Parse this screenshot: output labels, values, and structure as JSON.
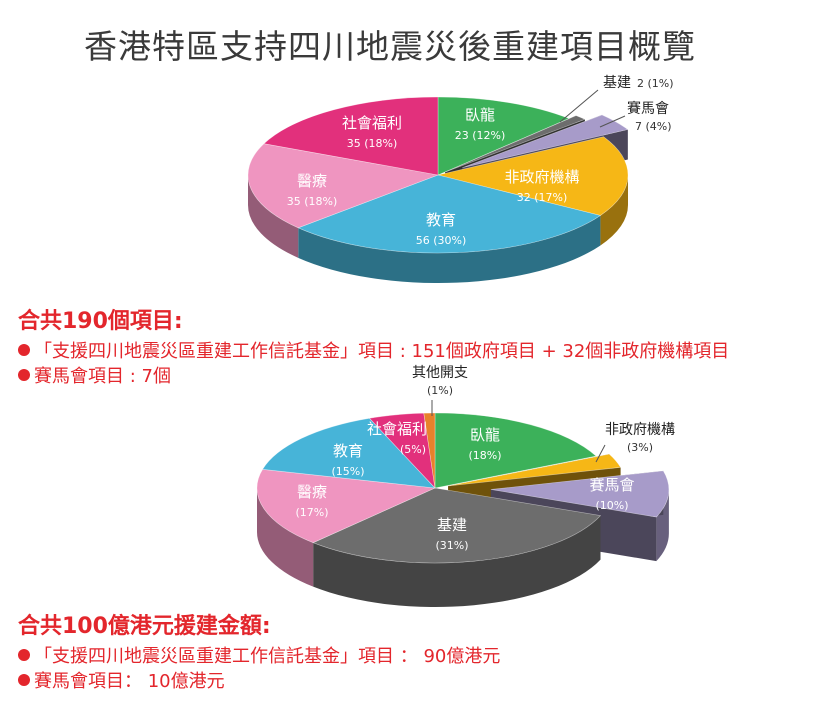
{
  "title": "香港特區支持四川地震災後重建項目概覽",
  "chart_data": [
    {
      "type": "pie",
      "slices": [
        {
          "label": "臥龍",
          "value": 23,
          "percent": "12%",
          "color": "#3cb15a",
          "value_text": "23 (12%)"
        },
        {
          "label": "基建",
          "value": 2,
          "percent": "1%",
          "color": "#6d6d6d",
          "value_text": "2 (1%)"
        },
        {
          "label": "賽馬會",
          "value": 7,
          "percent": "4%",
          "color": "#a79bc9",
          "value_text": "7 (4%)"
        },
        {
          "label": "非政府機構",
          "value": 32,
          "percent": "17%",
          "color": "#f6b716",
          "value_text": "32 (17%)"
        },
        {
          "label": "教育",
          "value": 56,
          "percent": "30%",
          "color": "#47b4d8",
          "value_text": "56 (30%)"
        },
        {
          "label": "醫療",
          "value": 35,
          "percent": "18%",
          "color": "#ef95c0",
          "value_text": "35 (18%)"
        },
        {
          "label": "社會福利",
          "value": 35,
          "percent": "18%",
          "color": "#e2307c",
          "value_text": "35 (18%)"
        }
      ]
    },
    {
      "type": "pie",
      "slices": [
        {
          "label": "臥龍",
          "percent": 18,
          "color": "#3cb15a",
          "value_text": "(18%)"
        },
        {
          "label": "非政府機構",
          "percent": 3,
          "color": "#f6b716",
          "value_text": "(3%)"
        },
        {
          "label": "賽馬會",
          "percent": 10,
          "color": "#a79bc9",
          "value_text": "(10%)"
        },
        {
          "label": "基建",
          "percent": 31,
          "color": "#6d6d6d",
          "value_text": "(31%)"
        },
        {
          "label": "醫療",
          "percent": 17,
          "color": "#ef95c0",
          "value_text": "(17%)"
        },
        {
          "label": "教育",
          "percent": 15,
          "color": "#47b4d8",
          "value_text": "(15%)"
        },
        {
          "label": "社會福利",
          "percent": 5,
          "color": "#e2307c",
          "value_text": "(5%)"
        },
        {
          "label": "其他開支",
          "percent": 1,
          "color": "#e8812b",
          "value_text": "(1%)"
        }
      ]
    }
  ],
  "summary1": {
    "heading": "合共190個項目:",
    "lines": [
      "「支援四川地震災區重建工作信託基金」項目 : 151個政府項目 + 32個非政府機構項目",
      "賽馬會項目 : 7個"
    ]
  },
  "summary2": {
    "heading": "合共100億港元援建金額:",
    "lines": [
      "「支援四川地震災區重建工作信託基金」項目 ： 90億港元",
      "賽馬會項目： 10億港元"
    ]
  }
}
